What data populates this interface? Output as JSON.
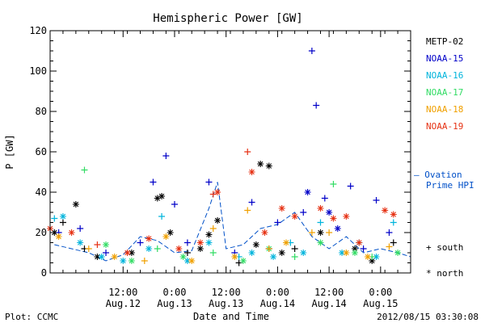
{
  "chart_data": {
    "type": "scatter",
    "title": "Hemispheric Power [GW]",
    "ylabel": "P [GW]",
    "xlabel": "Date and Time",
    "ylim": [
      0,
      120
    ],
    "xlim": [
      "2012-08-11T19:00",
      "2012-08-15T07:00"
    ],
    "y_ticks": [
      0,
      20,
      40,
      60,
      80,
      100,
      120
    ],
    "x_ticks": [
      {
        "at": "2012-08-12T12:00",
        "line1": "12:00",
        "line2": "Aug.12"
      },
      {
        "at": "2012-08-13T00:00",
        "line1": "0:00",
        "line2": "Aug.13"
      },
      {
        "at": "2012-08-13T12:00",
        "line1": "12:00",
        "line2": "Aug.13"
      },
      {
        "at": "2012-08-14T00:00",
        "line1": "0:00",
        "line2": "Aug.14"
      },
      {
        "at": "2012-08-14T12:00",
        "line1": "12:00",
        "line2": "Aug.14"
      },
      {
        "at": "2012-08-15T00:00",
        "line1": "0:00",
        "line2": "Aug.15"
      }
    ],
    "grid": false,
    "legend_position": "right",
    "series": [
      {
        "name": "METP-02",
        "color": "#000000",
        "points": [
          [
            "2012-08-11T20:00",
            20,
            "north"
          ],
          [
            "2012-08-11T22:00",
            25,
            "south"
          ],
          [
            "2012-08-12T01:00",
            34,
            "north"
          ],
          [
            "2012-08-12T03:00",
            12,
            "south"
          ],
          [
            "2012-08-12T06:00",
            8,
            "north"
          ],
          [
            "2012-08-12T14:00",
            10,
            "north"
          ],
          [
            "2012-08-12T20:00",
            37,
            "north"
          ],
          [
            "2012-08-12T21:00",
            38,
            "north"
          ],
          [
            "2012-08-12T23:00",
            20,
            "north"
          ],
          [
            "2012-08-13T03:00",
            10,
            "south"
          ],
          [
            "2012-08-13T06:00",
            12,
            "north"
          ],
          [
            "2012-08-13T08:00",
            19,
            "north"
          ],
          [
            "2012-08-13T10:00",
            26,
            "north"
          ],
          [
            "2012-08-13T15:00",
            5,
            "south"
          ],
          [
            "2012-08-13T19:00",
            14,
            "north"
          ],
          [
            "2012-08-13T20:00",
            54,
            "north"
          ],
          [
            "2012-08-13T22:00",
            53,
            "north"
          ],
          [
            "2012-08-14T01:00",
            10,
            "north"
          ],
          [
            "2012-08-14T04:00",
            12,
            "south"
          ],
          [
            "2012-08-14T10:00",
            20,
            "north"
          ],
          [
            "2012-08-14T18:00",
            12,
            "north"
          ],
          [
            "2012-08-14T22:00",
            6,
            "north"
          ],
          [
            "2012-08-15T03:00",
            15,
            "south"
          ]
        ]
      },
      {
        "name": "NOAA-15",
        "color": "#0000c8",
        "points": [
          [
            "2012-08-11T21:00",
            20,
            "south"
          ],
          [
            "2012-08-12T02:00",
            22,
            "south"
          ],
          [
            "2012-08-12T08:00",
            10,
            "south"
          ],
          [
            "2012-08-12T16:00",
            15,
            "south"
          ],
          [
            "2012-08-12T19:00",
            45,
            "south"
          ],
          [
            "2012-08-12T22:00",
            58,
            "south"
          ],
          [
            "2012-08-13T00:00",
            34,
            "south"
          ],
          [
            "2012-08-13T03:00",
            15,
            "south"
          ],
          [
            "2012-08-13T08:00",
            45,
            "south"
          ],
          [
            "2012-08-13T14:00",
            10,
            "south"
          ],
          [
            "2012-08-13T18:00",
            35,
            "south"
          ],
          [
            "2012-08-13T22:00",
            12,
            "south"
          ],
          [
            "2012-08-14T00:00",
            25,
            "south"
          ],
          [
            "2012-08-14T06:00",
            30,
            "south"
          ],
          [
            "2012-08-14T07:00",
            40,
            "north"
          ],
          [
            "2012-08-14T08:00",
            110,
            "south"
          ],
          [
            "2012-08-14T09:00",
            83,
            "south"
          ],
          [
            "2012-08-14T11:00",
            37,
            "south"
          ],
          [
            "2012-08-14T12:00",
            30,
            "north"
          ],
          [
            "2012-08-14T14:00",
            22,
            "north"
          ],
          [
            "2012-08-14T17:00",
            43,
            "south"
          ],
          [
            "2012-08-14T20:00",
            12,
            "south"
          ],
          [
            "2012-08-14T23:00",
            36,
            "south"
          ],
          [
            "2012-08-15T02:00",
            20,
            "south"
          ]
        ]
      },
      {
        "name": "NOAA-16",
        "color": "#00b4dc",
        "points": [
          [
            "2012-08-11T20:00",
            27,
            "south"
          ],
          [
            "2012-08-11T22:00",
            28,
            "north"
          ],
          [
            "2012-08-12T02:00",
            15,
            "north"
          ],
          [
            "2012-08-12T07:00",
            8,
            "north"
          ],
          [
            "2012-08-12T12:00",
            6,
            "north"
          ],
          [
            "2012-08-12T18:00",
            12,
            "north"
          ],
          [
            "2012-08-12T21:00",
            28,
            "south"
          ],
          [
            "2012-08-13T03:00",
            6,
            "north"
          ],
          [
            "2012-08-13T08:00",
            15,
            "north"
          ],
          [
            "2012-08-13T15:00",
            8,
            "south"
          ],
          [
            "2012-08-13T18:00",
            10,
            "north"
          ],
          [
            "2012-08-13T23:00",
            8,
            "north"
          ],
          [
            "2012-08-14T03:00",
            15,
            "south"
          ],
          [
            "2012-08-14T06:00",
            10,
            "north"
          ],
          [
            "2012-08-14T10:00",
            25,
            "south"
          ],
          [
            "2012-08-14T15:00",
            10,
            "north"
          ],
          [
            "2012-08-14T19:00",
            15,
            "south"
          ],
          [
            "2012-08-14T23:00",
            8,
            "north"
          ],
          [
            "2012-08-15T03:00",
            25,
            "south"
          ]
        ]
      },
      {
        "name": "NOAA-17",
        "color": "#32dc64",
        "points": [
          [
            "2012-08-12T03:00",
            51,
            "south"
          ],
          [
            "2012-08-12T08:00",
            14,
            "north"
          ],
          [
            "2012-08-12T14:00",
            6,
            "north"
          ],
          [
            "2012-08-12T20:00",
            12,
            "south"
          ],
          [
            "2012-08-13T02:00",
            8,
            "north"
          ],
          [
            "2012-08-13T09:00",
            10,
            "south"
          ],
          [
            "2012-08-13T16:00",
            6,
            "north"
          ],
          [
            "2012-08-13T22:00",
            12,
            "north"
          ],
          [
            "2012-08-14T04:00",
            8,
            "south"
          ],
          [
            "2012-08-14T10:00",
            15,
            "north"
          ],
          [
            "2012-08-14T13:00",
            44,
            "south"
          ],
          [
            "2012-08-14T18:00",
            10,
            "north"
          ],
          [
            "2012-08-14T22:00",
            8,
            "south"
          ],
          [
            "2012-08-15T04:00",
            10,
            "north"
          ]
        ]
      },
      {
        "name": "NOAA-18",
        "color": "#f0a000",
        "points": [
          [
            "2012-08-11T21:00",
            18,
            "north"
          ],
          [
            "2012-08-12T04:00",
            12,
            "south"
          ],
          [
            "2012-08-12T10:00",
            8,
            "north"
          ],
          [
            "2012-08-12T17:00",
            6,
            "south"
          ],
          [
            "2012-08-12T22:00",
            18,
            "north"
          ],
          [
            "2012-08-13T04:00",
            6,
            "north"
          ],
          [
            "2012-08-13T09:00",
            22,
            "south"
          ],
          [
            "2012-08-13T14:00",
            8,
            "north"
          ],
          [
            "2012-08-13T17:00",
            31,
            "south"
          ],
          [
            "2012-08-13T22:00",
            12,
            "south"
          ],
          [
            "2012-08-14T02:00",
            15,
            "north"
          ],
          [
            "2012-08-14T08:00",
            20,
            "south"
          ],
          [
            "2012-08-14T12:00",
            20,
            "south"
          ],
          [
            "2012-08-14T16:00",
            10,
            "north"
          ],
          [
            "2012-08-14T21:00",
            8,
            "north"
          ],
          [
            "2012-08-15T02:00",
            13,
            "south"
          ]
        ]
      },
      {
        "name": "NOAA-19",
        "color": "#e63214",
        "points": [
          [
            "2012-08-11T19:00",
            22,
            "north"
          ],
          [
            "2012-08-12T00:00",
            20,
            "north"
          ],
          [
            "2012-08-12T06:00",
            14,
            "south"
          ],
          [
            "2012-08-12T13:00",
            10,
            "north"
          ],
          [
            "2012-08-12T18:00",
            17,
            "north"
          ],
          [
            "2012-08-13T01:00",
            12,
            "north"
          ],
          [
            "2012-08-13T06:00",
            15,
            "north"
          ],
          [
            "2012-08-13T09:00",
            39,
            "south"
          ],
          [
            "2012-08-13T10:00",
            40,
            "north"
          ],
          [
            "2012-08-13T17:00",
            60,
            "south"
          ],
          [
            "2012-08-13T18:00",
            50,
            "north"
          ],
          [
            "2012-08-13T21:00",
            20,
            "north"
          ],
          [
            "2012-08-14T01:00",
            32,
            "north"
          ],
          [
            "2012-08-14T04:00",
            28,
            "north"
          ],
          [
            "2012-08-14T10:00",
            32,
            "north"
          ],
          [
            "2012-08-14T13:00",
            27,
            "north"
          ],
          [
            "2012-08-14T16:00",
            28,
            "north"
          ],
          [
            "2012-08-14T19:00",
            15,
            "north"
          ],
          [
            "2012-08-15T01:00",
            31,
            "north"
          ],
          [
            "2012-08-15T03:00",
            29,
            "north"
          ]
        ]
      }
    ],
    "ovation": {
      "color": "#0050c8",
      "points": [
        [
          "2012-08-11T20:00",
          14
        ],
        [
          "2012-08-12T00:00",
          12
        ],
        [
          "2012-08-12T04:00",
          10
        ],
        [
          "2012-08-12T08:00",
          6
        ],
        [
          "2012-08-12T12:00",
          9
        ],
        [
          "2012-08-12T16:00",
          18
        ],
        [
          "2012-08-12T20:00",
          16
        ],
        [
          "2012-08-13T00:00",
          10
        ],
        [
          "2012-08-13T04:00",
          11
        ],
        [
          "2012-08-13T08:00",
          32
        ],
        [
          "2012-08-13T10:00",
          45
        ],
        [
          "2012-08-13T12:00",
          12
        ],
        [
          "2012-08-13T16:00",
          14
        ],
        [
          "2012-08-13T20:00",
          22
        ],
        [
          "2012-08-14T00:00",
          24
        ],
        [
          "2012-08-14T04:00",
          30
        ],
        [
          "2012-08-14T08:00",
          18
        ],
        [
          "2012-08-14T12:00",
          12
        ],
        [
          "2012-08-14T16:00",
          18
        ],
        [
          "2012-08-14T20:00",
          10
        ],
        [
          "2012-08-15T00:00",
          12
        ],
        [
          "2012-08-15T04:00",
          10
        ],
        [
          "2012-08-15T07:00",
          8
        ]
      ]
    }
  },
  "legend": {
    "ovation_line1": "— Ovation",
    "ovation_line2": "Prime HPI",
    "south_label": "+ south",
    "north_label": "* north"
  },
  "footer": {
    "plot_by": "Plot: CCMC",
    "timestamp": "2012/08/15 03:30:08"
  }
}
